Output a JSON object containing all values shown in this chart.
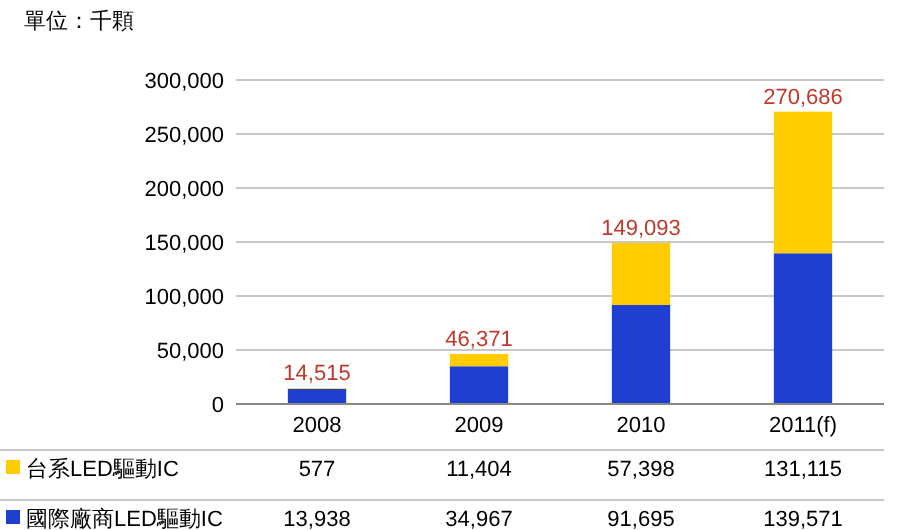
{
  "chart_data": {
    "type": "bar",
    "title": "單位：千顆",
    "stacked": true,
    "legend": "bottom",
    "grid": "y",
    "categories": [
      "2008",
      "2009",
      "2010",
      "2011(f)"
    ],
    "series": [
      {
        "name": "國際廠商LED驅動IC",
        "color": "#1f3fd0",
        "values": [
          13938,
          34967,
          91695,
          139571
        ],
        "value_labels": [
          "13,938",
          "34,967",
          "91,695",
          "139,571"
        ]
      },
      {
        "name": "台系LED驅動IC",
        "color": "#ffcc00",
        "values": [
          577,
          11404,
          57398,
          131115
        ],
        "value_labels": [
          "577",
          "11,404",
          "57,398",
          "131,115"
        ]
      }
    ],
    "totals": [
      "14,515",
      "46,371",
      "149,093",
      "270,686"
    ],
    "ylim": [
      0,
      300000
    ],
    "yticks": [
      {
        "value": 0,
        "label": "0"
      },
      {
        "value": 50000,
        "label": "50,000"
      },
      {
        "value": 100000,
        "label": "100,000"
      },
      {
        "value": 150000,
        "label": "150,000"
      },
      {
        "value": 200000,
        "label": "200,000"
      },
      {
        "value": 250000,
        "label": "250,000"
      },
      {
        "value": 300000,
        "label": "300,000"
      }
    ]
  }
}
